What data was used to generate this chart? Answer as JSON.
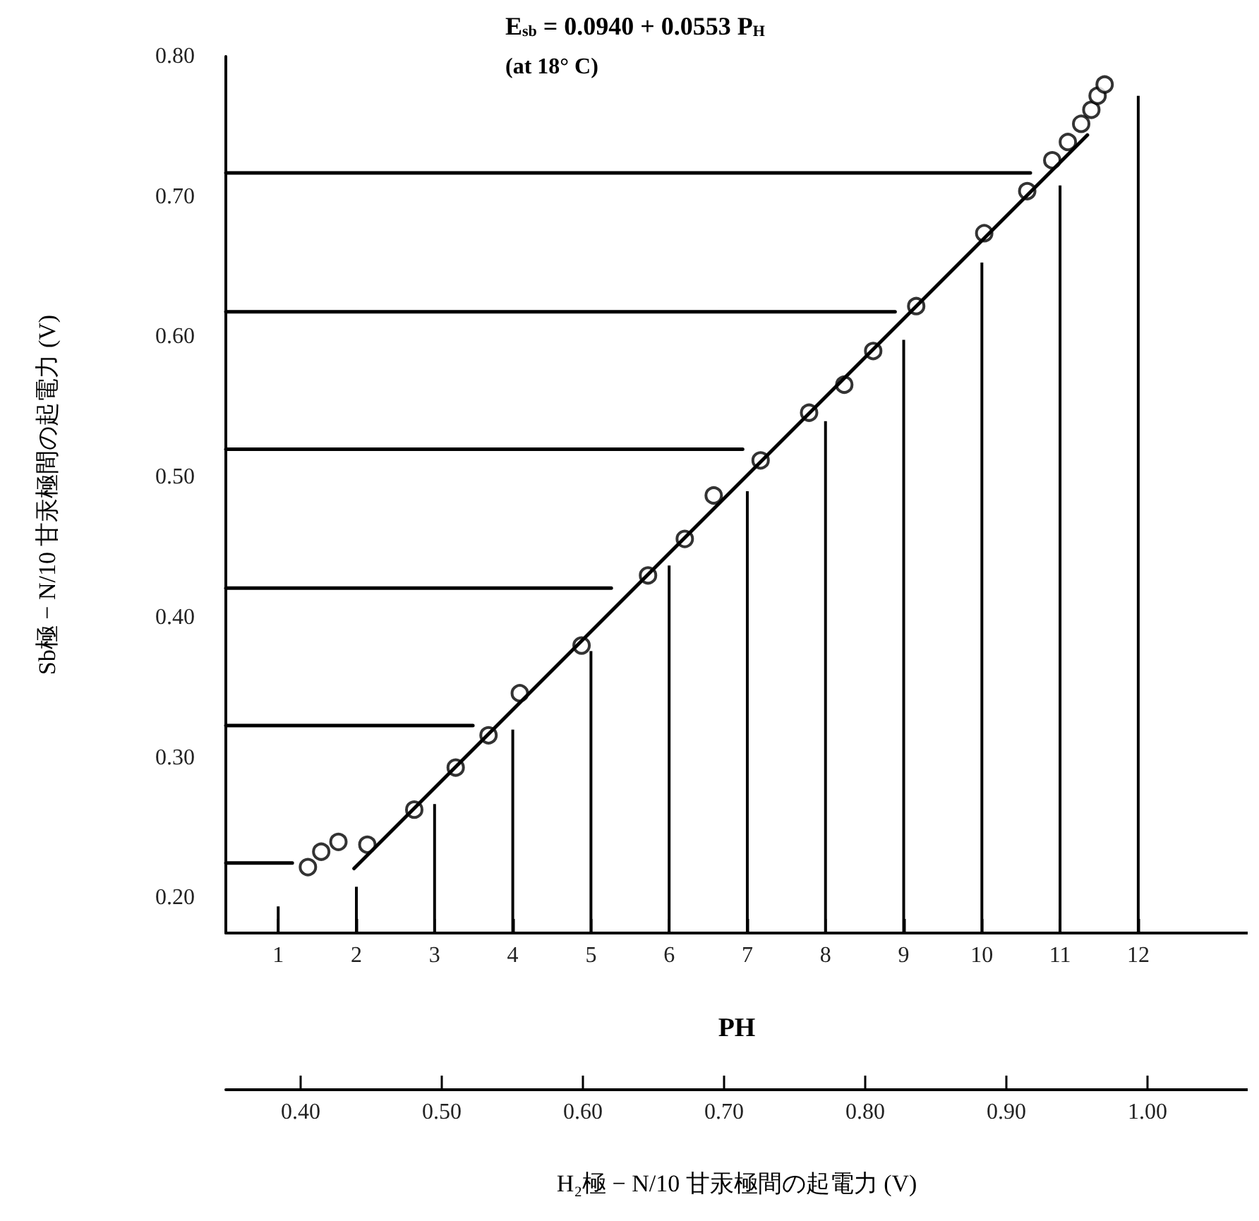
{
  "chart_data": {
    "type": "scatter",
    "title": "E$_{sb}$ = 0.0940 + 0.0553 P$_{H}$",
    "subtitle": "(at 18° C)",
    "xlabel": "PH",
    "ylabel": "Sb極 − N/10 甘汞極間の起電力 (V)",
    "x2label": "H₂極 − N/10 甘汞極間の起電力 (V)",
    "xlim": [
      0.33,
      13.4
    ],
    "xticks": [
      1,
      2,
      3,
      4,
      5,
      6,
      7,
      8,
      9,
      10,
      11,
      12
    ],
    "ylim": [
      0.175,
      0.8
    ],
    "yticks": [
      {
        "value": 0.2,
        "label": "0.20"
      },
      {
        "value": 0.3,
        "label": "0.30"
      },
      {
        "value": 0.4,
        "label": "0.40"
      },
      {
        "value": 0.5,
        "label": "0.50"
      },
      {
        "value": 0.6,
        "label": "0.60"
      },
      {
        "value": 0.7,
        "label": "0.70"
      },
      {
        "value": 0.8,
        "label": "0.80"
      }
    ],
    "x2lim": [
      0.347,
      1.071
    ],
    "x2ticks": [
      {
        "value": 0.4,
        "label": "0.40"
      },
      {
        "value": 0.5,
        "label": "0.50"
      },
      {
        "value": 0.6,
        "label": "0.60"
      },
      {
        "value": 0.7,
        "label": "0.70"
      },
      {
        "value": 0.8,
        "label": "0.80"
      },
      {
        "value": 0.9,
        "label": "0.90"
      },
      {
        "value": 1.0,
        "label": "1.00"
      }
    ],
    "grid": false,
    "marker": "circle",
    "series": [
      {
        "type": "bar",
        "color": "#000000",
        "x": [
          1,
          2,
          3,
          4,
          5,
          6,
          7,
          8,
          9,
          10,
          11,
          12
        ],
        "values": [
          0.194,
          0.208,
          0.267,
          0.32,
          0.376,
          0.437,
          0.49,
          0.54,
          0.598,
          0.653,
          0.708,
          0.772
        ]
      },
      {
        "type": "line",
        "marker": "none",
        "color": "#000000",
        "x": [
          0.33,
          1.18
        ],
        "values": [
          0.225,
          0.225
        ]
      },
      {
        "type": "line",
        "marker": "none",
        "color": "#000000",
        "x": [
          0.33,
          3.49
        ],
        "values": [
          0.323,
          0.323
        ]
      },
      {
        "type": "line",
        "marker": "none",
        "color": "#000000",
        "x": [
          0.33,
          5.26
        ],
        "values": [
          0.421,
          0.421
        ]
      },
      {
        "type": "line",
        "marker": "none",
        "color": "#000000",
        "x": [
          0.33,
          6.94
        ],
        "values": [
          0.52,
          0.52
        ]
      },
      {
        "type": "line",
        "marker": "none",
        "color": "#000000",
        "x": [
          0.33,
          8.89
        ],
        "values": [
          0.618,
          0.618
        ]
      },
      {
        "type": "line",
        "marker": "none",
        "color": "#000000",
        "x": [
          0.33,
          10.62
        ],
        "values": [
          0.717,
          0.717
        ]
      },
      {
        "type": "line",
        "marker": "none",
        "color": "#000000",
        "x": [
          1.97,
          11.35
        ],
        "values": [
          0.221,
          0.744
        ]
      },
      {
        "color": "#000000",
        "x": [
          1.38,
          1.55,
          1.77,
          2.14,
          2.74,
          3.27,
          3.69,
          4.09,
          4.88,
          5.73,
          6.2,
          6.57,
          7.17,
          7.79,
          8.24,
          8.61,
          9.16,
          10.03,
          10.58,
          10.9,
          11.1,
          11.27,
          11.4,
          11.48,
          11.57
        ],
        "values": [
          0.222,
          0.233,
          0.24,
          0.238,
          0.263,
          0.293,
          0.316,
          0.346,
          0.38,
          0.43,
          0.456,
          0.487,
          0.512,
          0.546,
          0.566,
          0.59,
          0.622,
          0.674,
          0.704,
          0.726,
          0.739,
          0.752,
          0.762,
          0.772,
          0.78
        ]
      }
    ]
  }
}
